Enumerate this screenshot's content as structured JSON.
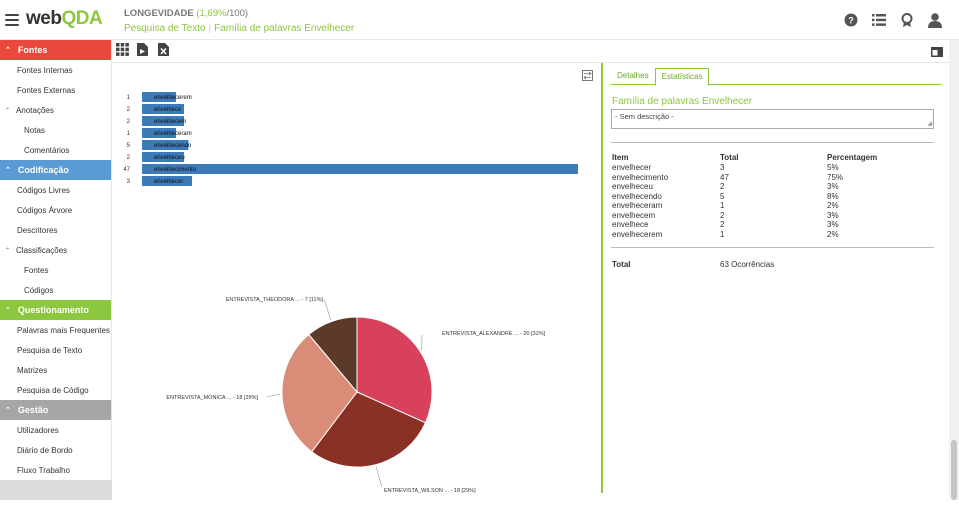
{
  "app": {
    "logo_main": "web",
    "logo_accent": "QDA",
    "project_name": "LONGEVIDADE",
    "project_pct": "(1,69%",
    "project_total": "/100)",
    "breadcrumb_1": "Pesquisa de Texto",
    "breadcrumb_2": "Família de palavras Envelhecer"
  },
  "top_icons": [
    "help-icon",
    "list-icon",
    "award-icon",
    "user-icon"
  ],
  "sidebar": {
    "fontes": "Fontes",
    "fontes_internas": "Fontes Internas",
    "fontes_externas": "Fontes Externas",
    "anotacoes": "Anotações",
    "notas": "Notas",
    "comentarios": "Comentários",
    "codificacao": "Codificação",
    "codigos_livres": "Códigos Livres",
    "codigos_arvore": "Códigos Árvore",
    "descritores": "Descritores",
    "classificacoes": "Classificações",
    "class_fontes": "Fontes",
    "class_codigos": "Códigos",
    "questionamento": "Questionamento",
    "palavras": "Palavras mais Frequentes",
    "pesquisa_texto": "Pesquisa de Texto",
    "matrizes": "Matrizes",
    "pesquisa_codigo": "Pesquisa de Código",
    "gestao": "Gestão",
    "utilizadores": "Utilizadores",
    "diario": "Diário de Bordo",
    "fluxo": "Fluxo Trabalho"
  },
  "chart_data": [
    {
      "type": "bar",
      "orientation": "horizontal",
      "categories": [
        "envelhecerem",
        "envelhece",
        "envelhecem",
        "envelheceram",
        "envelhecendo",
        "envelheceu",
        "envelhecimento",
        "envelhecer"
      ],
      "values": [
        1,
        2,
        2,
        1,
        5,
        2,
        47,
        3
      ],
      "color": "#3d7ab8"
    },
    {
      "type": "pie",
      "labels": [
        "ENTREVISTA_ALEXANDRE ... - 20 [32%]",
        "ENTREVISTA_WILSON ... - 18 [29%]",
        "ENTREVISTA_MONICA ... - 18 [29%]",
        "ENTREVISTA_THEODORA ... - 7 [11%]"
      ],
      "values": [
        20,
        18,
        18,
        7
      ],
      "colors": [
        "#d8415b",
        "#8b3024",
        "#d98c78",
        "#5c3a2a"
      ]
    }
  ],
  "panel": {
    "tab_detalhes": "Detalhes",
    "tab_estatisticas": "Estatísticas",
    "title": "Família de palavras Envelhecer",
    "description": "- Sem descrição -",
    "col_item": "Item",
    "col_total": "Total",
    "col_pct": "Percentagem",
    "rows": [
      {
        "item": "envelhecer",
        "total": "3",
        "pct": "5%"
      },
      {
        "item": "envelhecimento",
        "total": "47",
        "pct": "75%"
      },
      {
        "item": "envelheceu",
        "total": "2",
        "pct": "3%"
      },
      {
        "item": "envelhecendo",
        "total": "5",
        "pct": "8%"
      },
      {
        "item": "envelheceram",
        "total": "1",
        "pct": "2%"
      },
      {
        "item": "envelhecem",
        "total": "2",
        "pct": "3%"
      },
      {
        "item": "envelhece",
        "total": "2",
        "pct": "3%"
      },
      {
        "item": "envelhecerem",
        "total": "1",
        "pct": "2%"
      }
    ],
    "total_label": "Total",
    "total_value": "63 Ocorrências"
  }
}
